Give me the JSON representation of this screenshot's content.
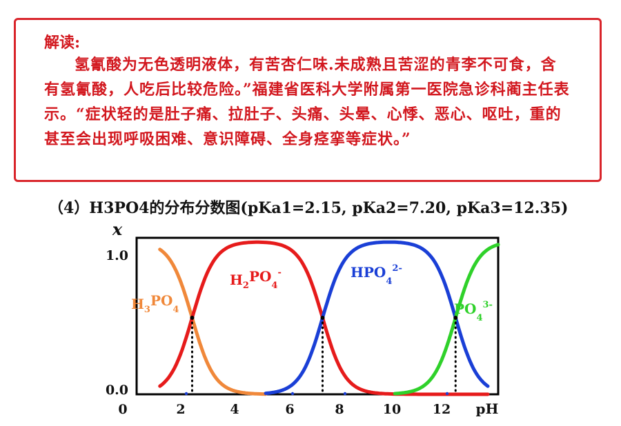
{
  "note": {
    "heading": "解读:",
    "body": "氢氰酸为无色透明液体，有苦杏仁味.未成熟且苦涩的青李不可食，含有氢氰酸，人吃后比较危险。”福建省医科大学附属第一医院急诊科蔺主任表示。“症状轻的是肚子痛、拉肚子、头痛、头晕、心悸、恶心、呕吐，重的甚至会出现呼吸困难、意识障碍、全身痉挛等症状。”"
  },
  "figure": {
    "caption": "（4）H3PO4的分布分数图(pKa1=2.15, pKa2=7.20, pKa3=12.35)"
  },
  "chart_data": {
    "type": "line",
    "ylabel": "x",
    "xlabel": "pH",
    "xlim": [
      0,
      14
    ],
    "ylim": [
      0,
      1
    ],
    "x_ticks": [
      "0",
      "2",
      "4",
      "6",
      "8",
      "10",
      "12"
    ],
    "y_ticks": [
      "0.0",
      "1.0"
    ],
    "pKa": [
      2.15,
      7.2,
      12.35
    ],
    "series": [
      {
        "name": "H3PO4",
        "label_main": "H",
        "label_sub1": "3",
        "label_mid": "PO",
        "label_sub2": "4",
        "label_sup": "",
        "color": "#f0883a"
      },
      {
        "name": "H2PO4-",
        "label_main": "H",
        "label_sub1": "2",
        "label_mid": "PO",
        "label_sub2": "4",
        "label_sup": "-",
        "color": "#e61b1b"
      },
      {
        "name": "HPO42-",
        "label_main": "",
        "label_sub1": "",
        "label_mid": "HPO",
        "label_sub2": "4",
        "label_sup": "2-",
        "color": "#1a3fd6"
      },
      {
        "name": "PO43-",
        "label_main": "",
        "label_sub1": "",
        "label_mid": "PO",
        "label_sub2": "4",
        "label_sup": "3-",
        "color": "#2fd12a"
      }
    ],
    "grid": false,
    "crossing_markers": "dotted vertical lines at each pKa"
  }
}
